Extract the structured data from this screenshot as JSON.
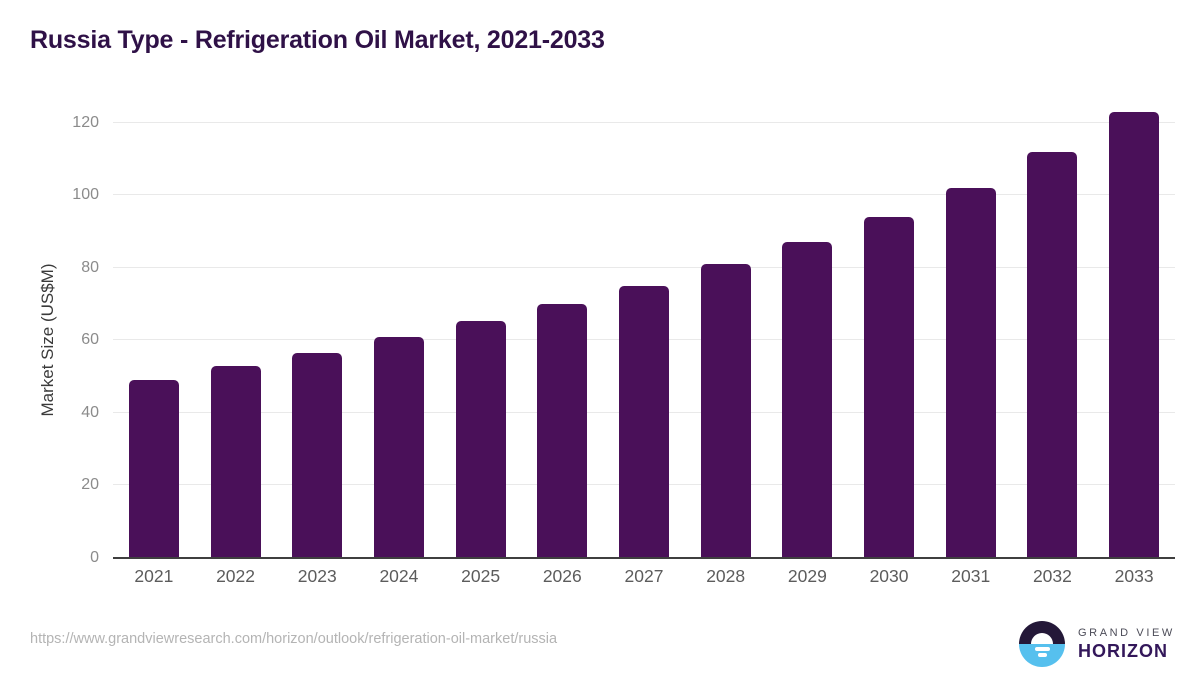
{
  "title": "Russia Type - Refrigeration Oil Market, 2021-2033",
  "chart_data": {
    "type": "bar",
    "categories": [
      "2021",
      "2022",
      "2023",
      "2024",
      "2025",
      "2026",
      "2027",
      "2028",
      "2029",
      "2030",
      "2031",
      "2032",
      "2033"
    ],
    "values": [
      49,
      53,
      56.5,
      61,
      65.3,
      70,
      75,
      81,
      87,
      94,
      102,
      112,
      123
    ],
    "title": "Russia Type - Refrigeration Oil Market, 2021-2033",
    "xlabel": "",
    "ylabel": "Market Size (US$M)",
    "ylim": [
      0,
      120
    ],
    "yticks": [
      0,
      20,
      40,
      60,
      80,
      100,
      120
    ],
    "grid": true,
    "legend": false,
    "bar_color": "#4a1059"
  },
  "colors": {
    "title_text": "#2f1147",
    "bar": "#4a1059",
    "gridline": "#e9e9e9",
    "axis_line": "#3f3f3f",
    "y_tick_text": "#8b8b8b",
    "x_tick_text": "#5c5c5c",
    "url_text": "#b4b4b4",
    "logo_dark": "#241838",
    "logo_blue": "#56c0ee",
    "logo_purple": "#33175a"
  },
  "footer": {
    "source_url": "https://www.grandviewresearch.com/horizon/outlook/refrigeration-oil-market/russia",
    "logo": {
      "line1": "GRAND VIEW",
      "line2": "HORIZON"
    }
  }
}
